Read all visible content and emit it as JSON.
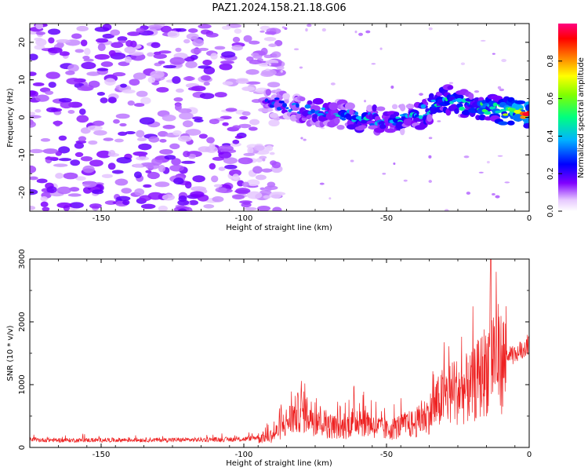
{
  "title": "PAZ1.2024.158.21.18.G06",
  "chart_data": [
    {
      "type": "heatmap",
      "xlabel": "Height of straight line (km)",
      "ylabel": "Frequency (Hz)",
      "xlim": [
        -175,
        0
      ],
      "ylim": [
        -25,
        25
      ],
      "xticks": [
        -150,
        -100,
        -50,
        0
      ],
      "xtick_labels": [
        "-150",
        "-100",
        "-50",
        "0"
      ],
      "yticks": [
        -20,
        -10,
        0,
        10,
        20
      ],
      "ytick_labels": [
        "-20",
        "-10",
        "0",
        "10",
        "20"
      ],
      "colorbar": {
        "label": "Normalized spectral amplitude",
        "range": [
          0,
          1
        ],
        "ticks": [
          0,
          0.2,
          0.4,
          0.6,
          0.8
        ],
        "tick_labels": [
          "0.0",
          "0.2",
          "0.4",
          "0.6",
          "0.8"
        ],
        "colormap": "gist_rainbow_r"
      },
      "ridge": {
        "x": [
          -90,
          -80,
          -70,
          -60,
          -50,
          -40,
          -30,
          -20,
          -10,
          0
        ],
        "frequency_hz": [
          4,
          2,
          1,
          0,
          -1,
          0,
          5,
          3,
          2,
          1
        ],
        "amplitude": [
          0.3,
          0.35,
          0.4,
          0.45,
          0.4,
          0.45,
          0.5,
          0.5,
          0.6,
          0.9
        ]
      },
      "noise_region": {
        "x_range": [
          -175,
          -95
        ],
        "amplitude": 0.15
      }
    },
    {
      "type": "line",
      "xlabel": "Height of straight line (km)",
      "ylabel": "SNR (10 * v/v)",
      "xlim": [
        -175,
        0
      ],
      "ylim": [
        0,
        3000
      ],
      "xticks": [
        -150,
        -100,
        -50,
        0
      ],
      "xtick_labels": [
        "-150",
        "-100",
        "-50",
        "0"
      ],
      "yticks": [
        0,
        1000,
        2000,
        3000
      ],
      "ytick_labels": [
        "0",
        "1000",
        "2000",
        "3000"
      ],
      "color": "#ee2222",
      "series": [
        {
          "x": [
            -175,
            -160,
            -140,
            -120,
            -100,
            -90,
            -85,
            -80,
            -75,
            -70,
            -65,
            -60,
            -55,
            -50,
            -45,
            -40,
            -35,
            -30,
            -25,
            -20,
            -15,
            -12,
            -10,
            -5,
            0
          ],
          "values": [
            120,
            115,
            120,
            120,
            130,
            200,
            450,
            650,
            500,
            380,
            350,
            520,
            400,
            300,
            380,
            420,
            600,
            900,
            1000,
            1050,
            1400,
            1700,
            1500,
            1550,
            1750
          ]
        }
      ]
    }
  ]
}
